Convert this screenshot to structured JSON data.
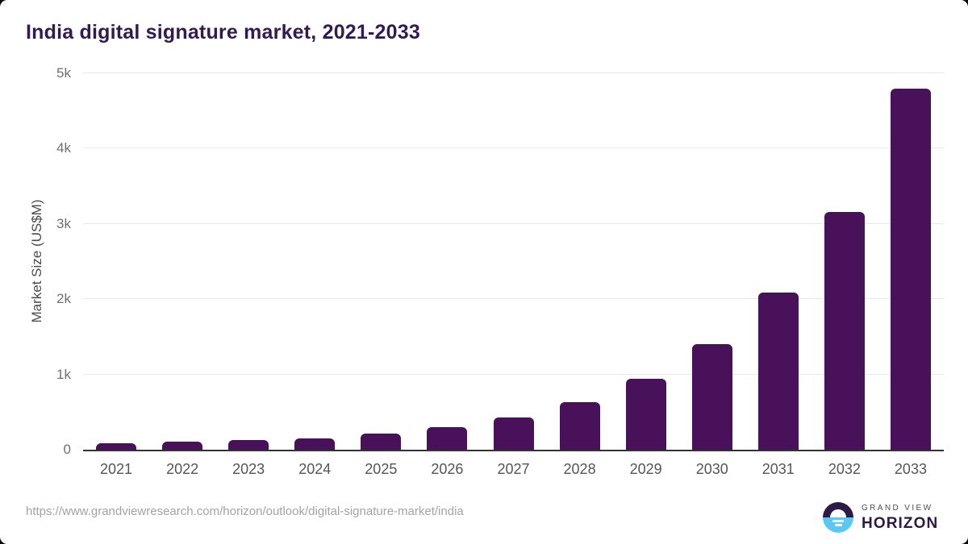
{
  "chart_data": {
    "type": "bar",
    "title": "India digital signature market, 2021-2033",
    "categories": [
      "2021",
      "2022",
      "2023",
      "2024",
      "2025",
      "2026",
      "2027",
      "2028",
      "2029",
      "2030",
      "2031",
      "2032",
      "2033"
    ],
    "values": [
      85,
      105,
      125,
      155,
      215,
      300,
      430,
      635,
      940,
      1400,
      2090,
      3155,
      4795
    ],
    "xlabel": "",
    "ylabel": "Market Size (US$M)",
    "ylim": [
      0,
      5000
    ],
    "ytick_values": [
      0,
      1000,
      2000,
      3000,
      4000,
      5000
    ],
    "ytick_labels": [
      "0",
      "1k",
      "2k",
      "3k",
      "4k",
      "5k"
    ],
    "grid": true,
    "legend": false,
    "bar_color": "#49115a"
  },
  "footer": {
    "source_url": "https://www.grandviewresearch.com/horizon/outlook/digital-signature-market/india",
    "brand_line1": "GRAND VIEW",
    "brand_line2": "HORIZON"
  },
  "colors": {
    "title": "#321a52",
    "axis_line": "#333333",
    "gridline": "#e8e8e8",
    "ytick_text": "#6e6f72",
    "xtick_text": "#545557",
    "url_text": "#a3a3a3",
    "logo_purple": "#2e1a47",
    "logo_blue": "#5bc7f2"
  }
}
